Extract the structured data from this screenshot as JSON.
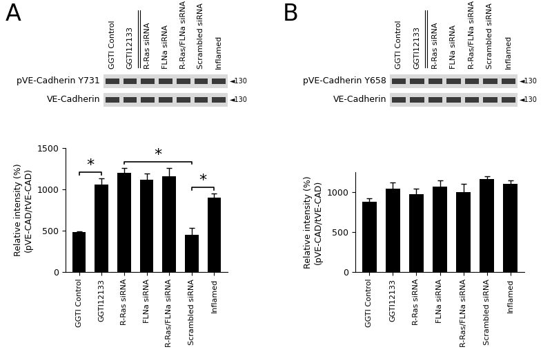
{
  "chart_data": [
    {
      "type": "bar",
      "panel": "A",
      "categories": [
        "GGTI Control",
        "GGTI12133",
        "R-Ras siRNA",
        "FLNa siRNA",
        "R-Ras/FLNa siRNA",
        "Scrambled siRNA",
        "Inflamed"
      ],
      "values": [
        480,
        1060,
        1200,
        1120,
        1160,
        450,
        900
      ],
      "errors": [
        15,
        70,
        60,
        70,
        100,
        80,
        50
      ],
      "color": "#000000",
      "y_label": "Relative intensity (%)\n(pVE-CAD/tVE-CAD)",
      "ylim": [
        0,
        1500
      ],
      "yticks": [
        0,
        500,
        1000,
        1500
      ],
      "significance": [
        {
          "from": 0,
          "to": 1,
          "label": "*"
        },
        {
          "from": 2,
          "to": 5,
          "label": "*"
        },
        {
          "from": 5,
          "to": 6,
          "label": "*"
        }
      ],
      "blot": {
        "lanes": [
          "GGTI Control",
          "GGTI12133",
          "R-Ras siRNA",
          "FLNa siRNA",
          "R-Ras/FLNa siRNA",
          "Scrambled siRNA",
          "Inflamed"
        ],
        "rows": [
          {
            "label": "pVE-Cadherin Y731",
            "size_label": "◄130"
          },
          {
            "label": "VE-Cadherin",
            "size_label": "◄130"
          }
        ]
      }
    },
    {
      "type": "bar",
      "panel": "B",
      "categories": [
        "GGTI Control",
        "GGTI12133",
        "R-Ras siRNA",
        "FLNa siRNA",
        "R-Ras/FLNa siRNA",
        "Scrambled siRNA",
        "Inflamed"
      ],
      "values": [
        880,
        1040,
        970,
        1070,
        1000,
        1160,
        1100
      ],
      "errors": [
        40,
        80,
        70,
        80,
        100,
        40,
        50
      ],
      "color": "#000000",
      "y_label": "Relative intensity (%)\n(pVE-CAD/tVE-CAD)",
      "ylim": [
        0,
        1250
      ],
      "yticks": [
        0,
        500,
        1000
      ],
      "significance": [],
      "blot": {
        "lanes": [
          "GGTI Control",
          "GGTI12133",
          "R-Ras siRNA",
          "FLNa siRNA",
          "R-Ras/FLNa siRNA",
          "Scrambled siRNA",
          "Inflamed"
        ],
        "rows": [
          {
            "label": "pVE-Cadherin Y658",
            "size_label": "◄130"
          },
          {
            "label": "VE-Cadherin",
            "size_label": "◄130"
          }
        ]
      }
    }
  ]
}
